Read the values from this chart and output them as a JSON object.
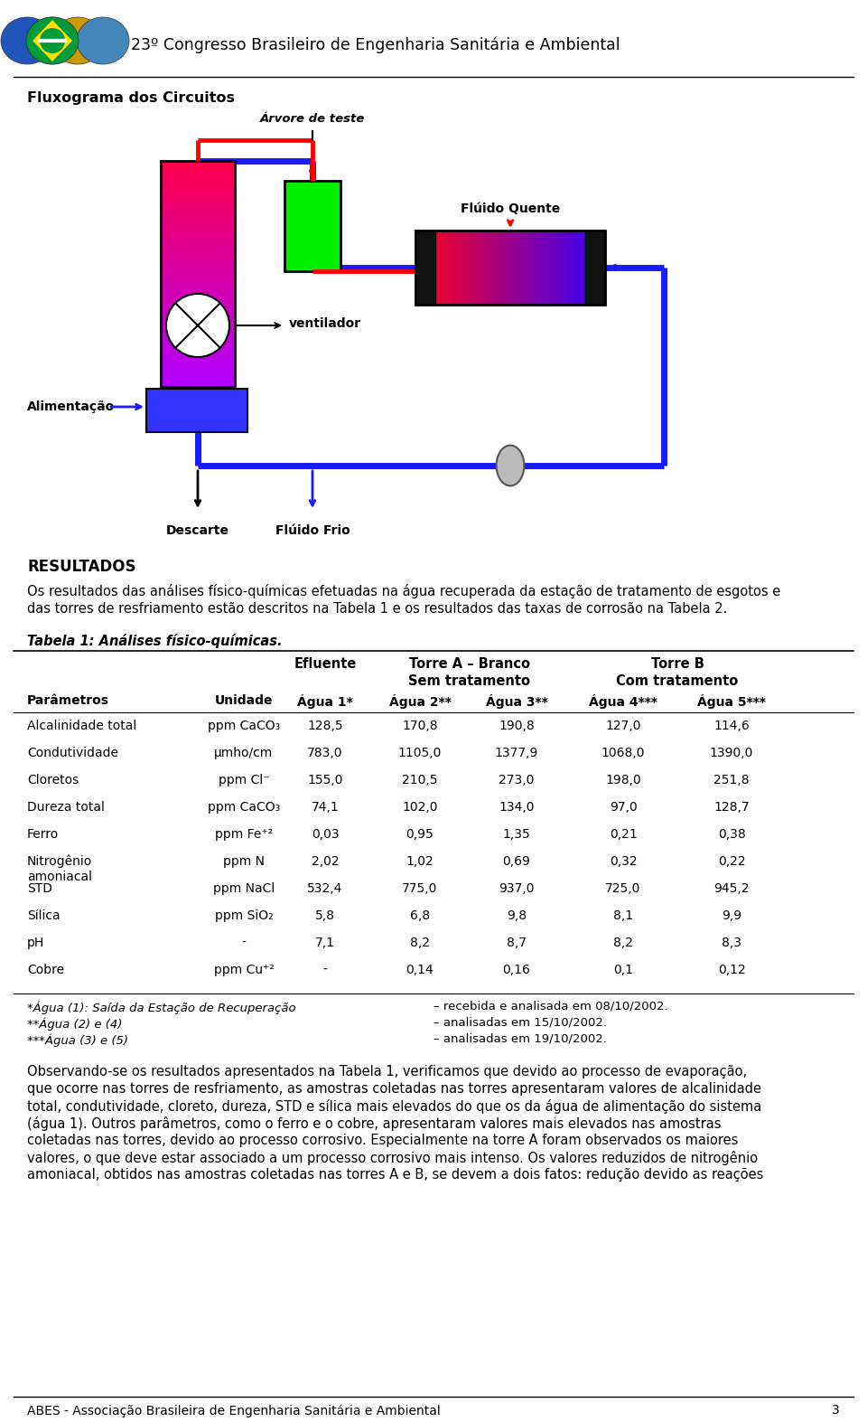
{
  "page_title": "23º Congresso Brasileiro de Engenharia Sanitária e Ambiental",
  "section_title": "Fluxograma dos Circuitos",
  "arvore_label": "Árvore de teste",
  "fluido_quente_label": "Flúido Quente",
  "alimentacao_label": "Alimentação",
  "ventilador_label": "ventilador",
  "descarte_label": "Descarte",
  "fluido_frio_label": "Flúido Frio",
  "results_title": "RESULTADOS",
  "results_text_line1": "Os resultados das análises físico-químicas efetuadas na água recuperada da estação de tratamento de esgotos e",
  "results_text_line2": "das torres de resfriamento estão descritos na Tabela 1 e os resultados das taxas de corrosão na Tabela 2.",
  "table_title": "Tabela 1: Análises físico-químicas.",
  "table_header_1": "Efluente",
  "table_header_2": "Torre A – Branco",
  "table_header_3": "Torre B",
  "table_subheader_2": "Sem tratamento",
  "table_subheader_3": "Com tratamento",
  "col_headers": [
    "Parâmetros",
    "Unidade",
    "Água 1*",
    "Água 2**",
    "Água 3**",
    "Água 4***",
    "Água 5***"
  ],
  "table_rows": [
    [
      "Alcalinidade total",
      "ppm CaCO₃",
      "128,5",
      "170,8",
      "190,8",
      "127,0",
      "114,6"
    ],
    [
      "Condutividade",
      "μmho/cm",
      "783,0",
      "1105,0",
      "1377,9",
      "1068,0",
      "1390,0"
    ],
    [
      "Cloretos",
      "ppm Cl⁻",
      "155,0",
      "210,5",
      "273,0",
      "198,0",
      "251,8"
    ],
    [
      "Dureza total",
      "ppm CaCO₃",
      "74,1",
      "102,0",
      "134,0",
      "97,0",
      "128,7"
    ],
    [
      "Ferro",
      "ppm Fe⁺²",
      "0,03",
      "0,95",
      "1,35",
      "0,21",
      "0,38"
    ],
    [
      "Nitrogênio\namoniacal",
      "ppm N",
      "2,02",
      "1,02",
      "0,69",
      "0,32",
      "0,22"
    ],
    [
      "STD",
      "ppm NaCl",
      "532,4",
      "775,0",
      "937,0",
      "725,0",
      "945,2"
    ],
    [
      "Sílica",
      "ppm SiO₂",
      "5,8",
      "6,8",
      "9,8",
      "8,1",
      "9,9"
    ],
    [
      "pH",
      "-",
      "7,1",
      "8,2",
      "8,7",
      "8,2",
      "8,3"
    ],
    [
      "Cobre",
      "ppm Cu⁺²",
      "-",
      "0,14",
      "0,16",
      "0,1",
      "0,12"
    ]
  ],
  "footnote_1a": "*Água (1): Saída da Estação de Recuperação",
  "footnote_1b": "– recebida e analisada em 08/10/2002.",
  "footnote_2a": "**Água (2) e (4)",
  "footnote_2b": "– analisadas em 15/10/2002.",
  "footnote_3a": "***Água (3) e (5)",
  "footnote_3b": "– analisadas em 19/10/2002.",
  "obs_lines": [
    "Observando-se os resultados apresentados na Tabela 1, verificamos que devido ao processo de evaporação,",
    "que ocorre nas torres de resfriamento, as amostras coletadas nas torres apresentaram valores de alcalinidade",
    "total, condutividade, cloreto, dureza, STD e sílica mais elevados do que os da água de alimentação do sistema",
    "(água 1). Outros parâmetros, como o ferro e o cobre, apresentaram valores mais elevados nas amostras",
    "coletadas nas torres, devido ao processo corrosivo. Especialmente na torre A foram observados os maiores",
    "valores, o que deve estar associado a um processo corrosivo mais intenso. Os valores reduzidos de nitrogênio",
    "amoniacal, obtidos nas amostras coletadas nas torres A e B, se devem a dois fatos: redução devido as reações"
  ],
  "footer_text": "ABES - Associação Brasileira de Engenharia Sanitária e Ambiental",
  "footer_page": "3",
  "blue": "#1a1aff",
  "red": "#ff0000",
  "green": "#00cc00",
  "black": "#000000",
  "white": "#ffffff",
  "gray": "#aaaaaa",
  "bg": "#ffffff"
}
